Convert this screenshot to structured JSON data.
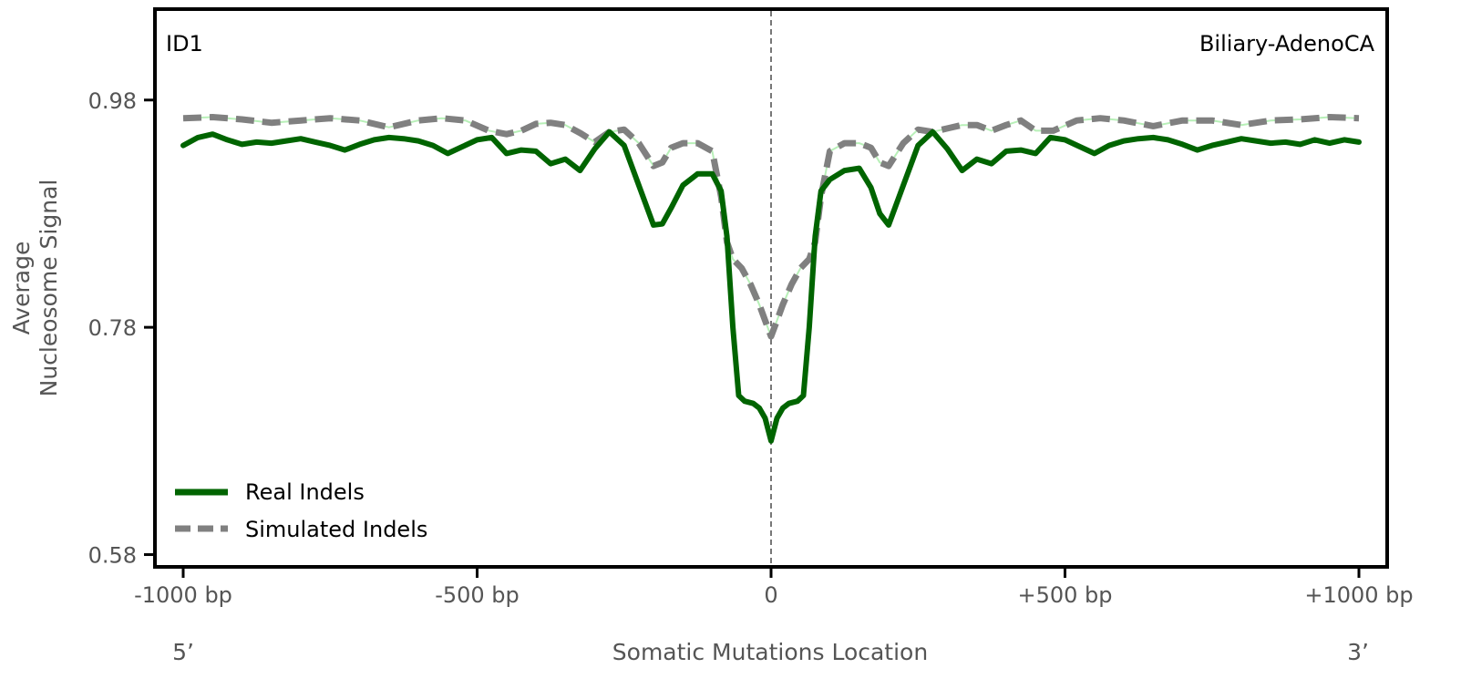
{
  "chart_data": {
    "type": "line",
    "panel_label": "ID1",
    "cancer_type": "Biliary-AdenoCA",
    "xlabel": "Somatic Mutations Location",
    "ylabel_line1": "Average",
    "ylabel_line2": "Nucleosome Signal",
    "end_label_left": "5’",
    "end_label_right": "3’",
    "xlim": [
      -1000,
      1000
    ],
    "ylim": [
      0.57,
      1.06
    ],
    "x_ticks": [
      -1000,
      -500,
      0,
      500,
      1000
    ],
    "x_tick_labels": [
      "-1000 bp",
      "-500 bp",
      "0",
      "+500 bp",
      "+1000 bp"
    ],
    "y_ticks": [
      0.58,
      0.78,
      0.98
    ],
    "y_tick_labels": [
      "0.58",
      "0.78",
      "0.98"
    ],
    "vertical_reference_line_x": 0,
    "legend_position": "lower-left",
    "colors": {
      "real": "#006400",
      "simulated": "#808080",
      "simulated_inner": "#b8f0b8",
      "reference": "#777777",
      "axes": "#000000"
    },
    "series": [
      {
        "name": "Real Indels",
        "style": "solid",
        "x": [
          -1000,
          -975,
          -950,
          -925,
          -900,
          -875,
          -850,
          -825,
          -800,
          -775,
          -750,
          -725,
          -700,
          -675,
          -650,
          -625,
          -600,
          -575,
          -550,
          -525,
          -500,
          -475,
          -450,
          -425,
          -400,
          -375,
          -350,
          -325,
          -300,
          -275,
          -250,
          -225,
          -200,
          -185,
          -170,
          -150,
          -125,
          -100,
          -85,
          -75,
          -65,
          -55,
          -45,
          -30,
          -20,
          -10,
          0,
          10,
          20,
          30,
          45,
          55,
          65,
          75,
          85,
          100,
          125,
          150,
          170,
          185,
          200,
          225,
          250,
          275,
          300,
          325,
          350,
          375,
          400,
          425,
          450,
          475,
          500,
          525,
          550,
          575,
          600,
          625,
          650,
          675,
          700,
          725,
          750,
          775,
          800,
          825,
          850,
          875,
          900,
          925,
          950,
          975,
          1000
        ],
        "y": [
          0.94,
          0.947,
          0.95,
          0.945,
          0.941,
          0.943,
          0.942,
          0.944,
          0.946,
          0.943,
          0.94,
          0.936,
          0.941,
          0.945,
          0.947,
          0.946,
          0.944,
          0.94,
          0.933,
          0.939,
          0.945,
          0.947,
          0.933,
          0.936,
          0.935,
          0.924,
          0.928,
          0.918,
          0.937,
          0.952,
          0.94,
          0.905,
          0.87,
          0.871,
          0.885,
          0.905,
          0.915,
          0.915,
          0.9,
          0.86,
          0.78,
          0.72,
          0.715,
          0.713,
          0.709,
          0.7,
          0.68,
          0.7,
          0.709,
          0.713,
          0.715,
          0.72,
          0.78,
          0.86,
          0.9,
          0.91,
          0.918,
          0.92,
          0.903,
          0.88,
          0.87,
          0.905,
          0.94,
          0.952,
          0.937,
          0.918,
          0.928,
          0.924,
          0.935,
          0.936,
          0.933,
          0.947,
          0.945,
          0.939,
          0.933,
          0.94,
          0.944,
          0.946,
          0.947,
          0.945,
          0.941,
          0.936,
          0.94,
          0.943,
          0.946,
          0.944,
          0.942,
          0.943,
          0.941,
          0.945,
          0.942,
          0.945,
          0.943
        ]
      },
      {
        "name": "Simulated Indels",
        "style": "dashed",
        "x": [
          -1000,
          -950,
          -900,
          -850,
          -800,
          -750,
          -700,
          -650,
          -600,
          -560,
          -520,
          -480,
          -450,
          -425,
          -400,
          -375,
          -350,
          -325,
          -300,
          -275,
          -250,
          -225,
          -200,
          -185,
          -170,
          -150,
          -125,
          -100,
          -85,
          -75,
          -65,
          -50,
          -35,
          -20,
          -10,
          0,
          10,
          20,
          35,
          50,
          65,
          75,
          85,
          100,
          125,
          150,
          170,
          185,
          200,
          225,
          250,
          275,
          300,
          325,
          350,
          375,
          400,
          425,
          450,
          480,
          520,
          560,
          600,
          650,
          700,
          750,
          800,
          850,
          900,
          950,
          1000
        ],
        "y": [
          0.964,
          0.965,
          0.963,
          0.96,
          0.962,
          0.964,
          0.962,
          0.956,
          0.962,
          0.964,
          0.962,
          0.953,
          0.95,
          0.953,
          0.959,
          0.96,
          0.958,
          0.951,
          0.943,
          0.952,
          0.954,
          0.942,
          0.922,
          0.925,
          0.938,
          0.942,
          0.942,
          0.935,
          0.895,
          0.855,
          0.84,
          0.832,
          0.818,
          0.8,
          0.786,
          0.772,
          0.786,
          0.8,
          0.818,
          0.832,
          0.84,
          0.855,
          0.895,
          0.935,
          0.942,
          0.942,
          0.938,
          0.925,
          0.922,
          0.942,
          0.954,
          0.952,
          0.955,
          0.958,
          0.958,
          0.953,
          0.958,
          0.962,
          0.953,
          0.953,
          0.962,
          0.964,
          0.962,
          0.957,
          0.962,
          0.962,
          0.958,
          0.962,
          0.963,
          0.965,
          0.964
        ]
      }
    ]
  }
}
